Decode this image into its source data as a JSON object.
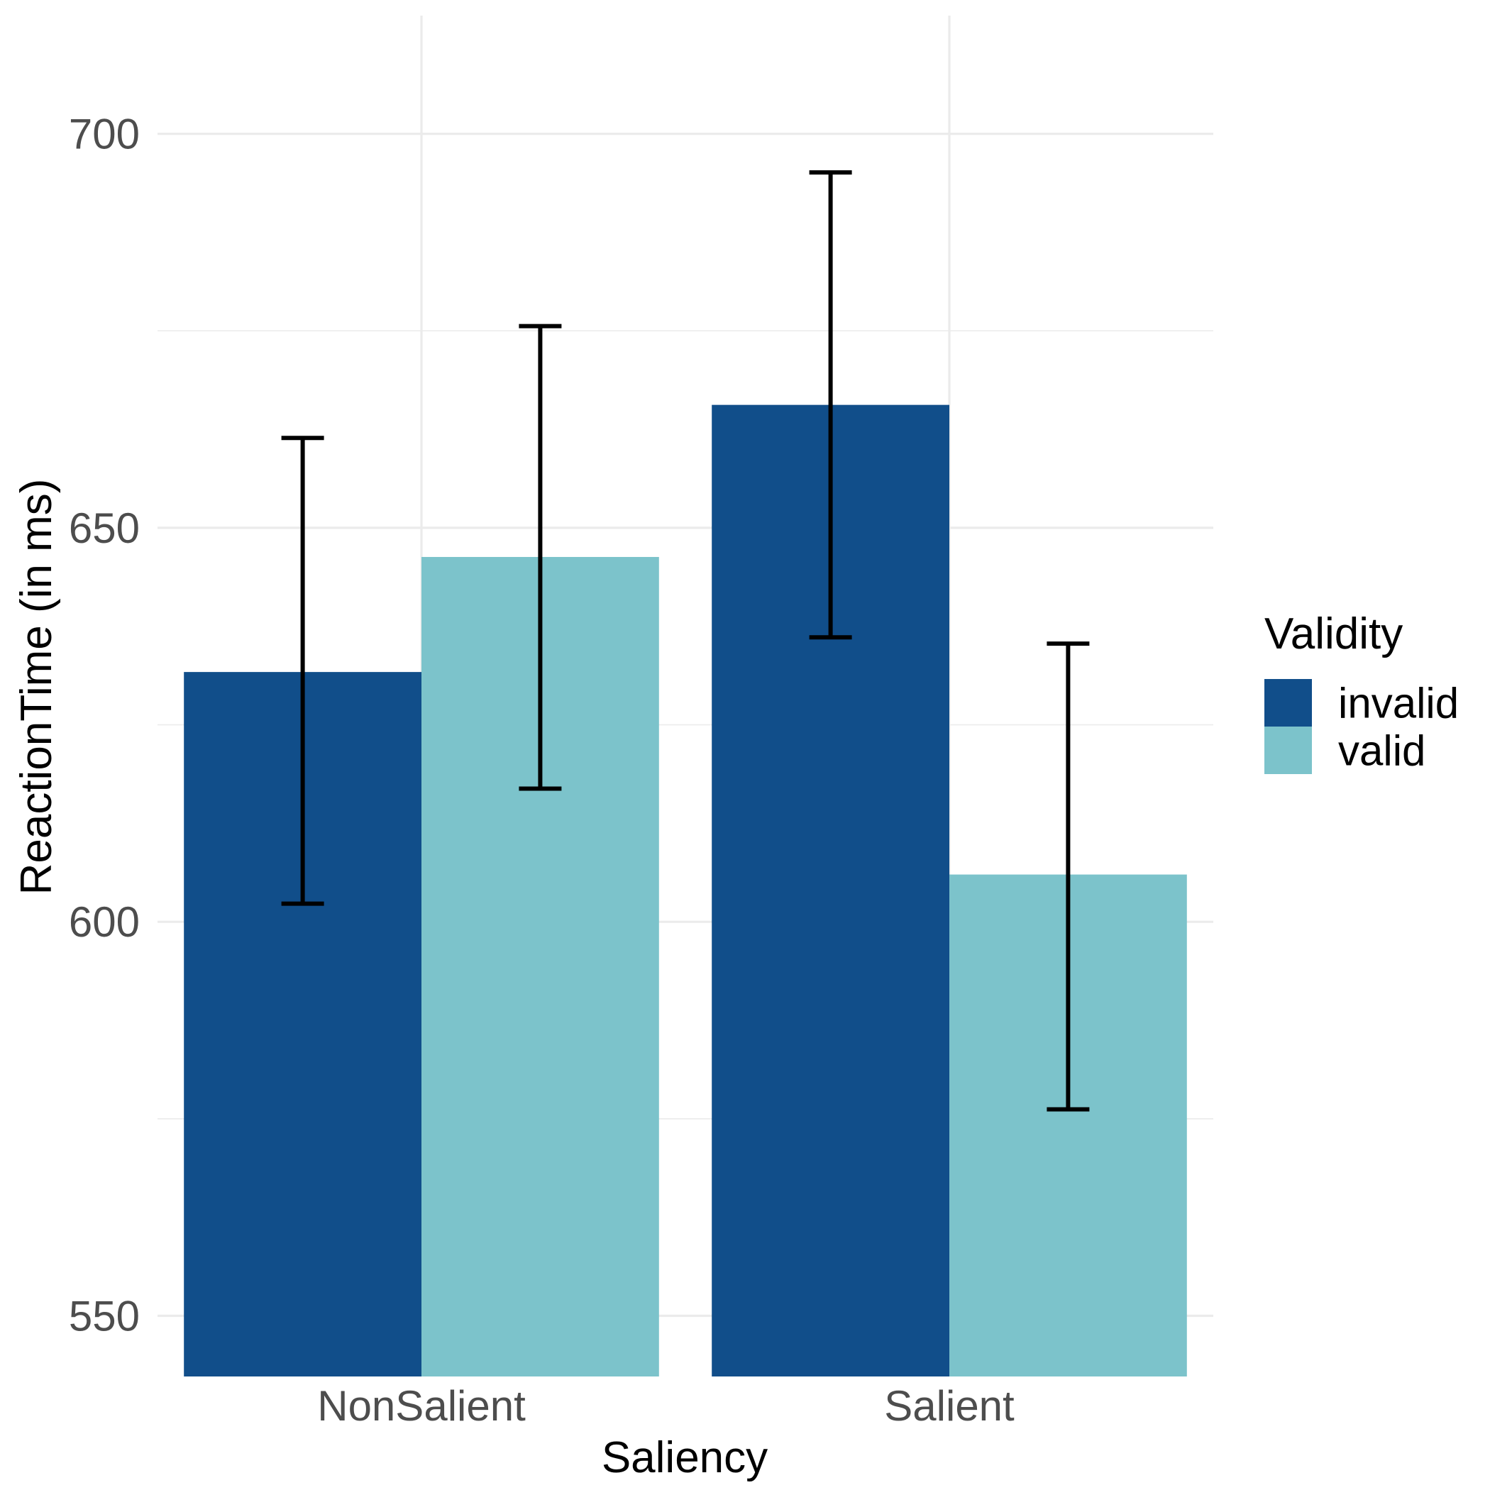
{
  "chart_data": {
    "type": "bar",
    "title": "",
    "xlabel": "Saliency",
    "ylabel": "ReactionTime (in ms)",
    "categories": [
      "NonSalient",
      "Salient"
    ],
    "ylim": [
      542.3,
      715
    ],
    "yticks": [
      550,
      600,
      650,
      700
    ],
    "y_minor_ticks": [
      575,
      625,
      675
    ],
    "grid": true,
    "legend": {
      "title": "Validity",
      "position": "right"
    },
    "series": [
      {
        "name": "invalid",
        "color": "#114e8a",
        "values": [
          631.7,
          665.6
        ],
        "error_low": [
          602.3,
          636.1
        ],
        "error_high": [
          661.4,
          695.1
        ]
      },
      {
        "name": "valid",
        "color": "#7cc3cb",
        "values": [
          646.3,
          606.0
        ],
        "error_low": [
          616.9,
          576.2
        ],
        "error_high": [
          675.6,
          635.3
        ]
      }
    ]
  }
}
